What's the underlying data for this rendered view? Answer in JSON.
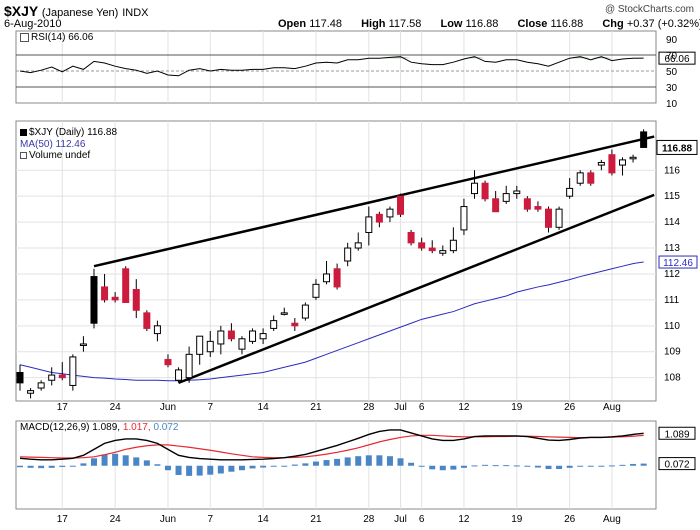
{
  "header": {
    "symbol": "$XJY",
    "name": "(Japanese Yen)",
    "exchange": "INDX",
    "date": "6-Aug-2010",
    "brand": "@ StockCharts.com",
    "open_label": "Open",
    "open": "117.48",
    "high_label": "High",
    "high": "117.58",
    "low_label": "Low",
    "low": "116.88",
    "close_label": "Close",
    "close": "116.88",
    "chg_label": "Chg",
    "chg": "+0.37 (+0.32%)"
  },
  "colors": {
    "up": "#ffffff",
    "down": "#cc1b3d",
    "outline": "#000000",
    "ma": "#2b2bbf",
    "macd_line": "#000000",
    "signal_line": "#e8292e",
    "hist": "#4a86c6",
    "grid": "#e2e2e2",
    "rsi_fill": "#3c8a3c"
  },
  "panes": {
    "rsi_label": "RSI(14) 66.06",
    "price_label": "$XJY (Daily) 116.88",
    "ma_label": "MA(50) 112.46",
    "vol_label": "Volume undef",
    "macd_label_a": "MACD(12,26,9)",
    "macd_label_b": "1.089,",
    "macd_label_c": "1.017,",
    "macd_label_d": "0.072"
  },
  "x_labels": [
    "17",
    "24",
    "Jun",
    "7",
    "14",
    "21",
    "28",
    "Jul",
    "6",
    "12",
    "19",
    "26",
    "Aug"
  ],
  "chart_data": [
    {
      "type": "candlestick",
      "title": "$XJY (Daily) 116.88",
      "ylim": [
        107.1,
        117.9
      ],
      "yticks": [
        108,
        109,
        110,
        111,
        112,
        113,
        114,
        115,
        116
      ],
      "last_value": 116.88,
      "ohlc": [
        [
          108.2,
          108.5,
          107.5,
          107.8
        ],
        [
          107.4,
          107.6,
          107.2,
          107.5
        ],
        [
          107.6,
          107.9,
          107.5,
          107.8
        ],
        [
          107.9,
          108.4,
          107.7,
          108.1
        ],
        [
          108.1,
          108.6,
          107.9,
          108.0
        ],
        [
          107.7,
          108.9,
          107.5,
          108.8
        ],
        [
          109.3,
          109.6,
          109.0,
          109.3
        ],
        [
          110.1,
          112.2,
          109.9,
          111.9
        ],
        [
          111.5,
          112.0,
          110.9,
          111.0
        ],
        [
          111.1,
          111.3,
          110.9,
          111.0
        ],
        [
          112.2,
          112.3,
          110.9,
          110.9
        ],
        [
          111.4,
          111.8,
          110.3,
          110.6
        ],
        [
          110.5,
          110.6,
          109.8,
          109.9
        ],
        [
          109.7,
          110.2,
          109.4,
          110.0
        ],
        [
          108.7,
          108.9,
          108.4,
          108.5
        ],
        [
          107.9,
          108.4,
          107.8,
          108.3
        ],
        [
          108.0,
          109.2,
          107.8,
          108.9
        ],
        [
          108.9,
          109.6,
          108.5,
          109.6
        ],
        [
          109.0,
          109.8,
          108.8,
          109.4
        ],
        [
          109.3,
          110.0,
          108.9,
          109.8
        ],
        [
          109.8,
          110.1,
          109.4,
          109.5
        ],
        [
          109.1,
          109.6,
          108.9,
          109.5
        ],
        [
          109.4,
          109.9,
          109.3,
          109.8
        ],
        [
          109.5,
          109.9,
          109.3,
          109.7
        ],
        [
          109.9,
          110.4,
          109.8,
          110.2
        ],
        [
          110.5,
          110.7,
          110.4,
          110.5
        ],
        [
          110.1,
          110.3,
          109.8,
          110.0
        ],
        [
          110.3,
          110.9,
          110.2,
          110.8
        ],
        [
          111.1,
          111.8,
          111.0,
          111.6
        ],
        [
          111.7,
          112.5,
          111.6,
          112.0
        ],
        [
          112.2,
          112.4,
          111.4,
          111.5
        ],
        [
          112.5,
          113.2,
          112.3,
          113.0
        ],
        [
          113.0,
          113.6,
          112.9,
          113.2
        ],
        [
          113.6,
          114.6,
          113.1,
          114.2
        ],
        [
          114.3,
          114.4,
          113.8,
          114.0
        ],
        [
          114.2,
          114.6,
          114.0,
          114.5
        ],
        [
          115.0,
          115.1,
          114.2,
          114.3
        ],
        [
          113.6,
          113.7,
          113.1,
          113.2
        ],
        [
          113.2,
          113.4,
          112.9,
          113.0
        ],
        [
          113.0,
          113.3,
          112.8,
          112.9
        ],
        [
          112.8,
          113.1,
          112.7,
          112.9
        ],
        [
          112.9,
          113.8,
          112.8,
          113.3
        ],
        [
          113.7,
          114.9,
          113.5,
          114.6
        ],
        [
          115.1,
          116.0,
          114.9,
          115.5
        ],
        [
          115.5,
          115.6,
          114.8,
          114.9
        ],
        [
          114.9,
          115.2,
          114.4,
          114.4
        ],
        [
          114.8,
          115.4,
          114.7,
          115.1
        ],
        [
          115.1,
          115.4,
          114.9,
          115.2
        ],
        [
          114.9,
          115.0,
          114.4,
          114.5
        ],
        [
          114.6,
          114.8,
          114.4,
          114.5
        ],
        [
          114.5,
          114.6,
          113.6,
          113.8
        ],
        [
          113.8,
          114.6,
          113.7,
          114.5
        ],
        [
          115.0,
          115.7,
          114.9,
          115.3
        ],
        [
          115.5,
          116.0,
          115.4,
          115.9
        ],
        [
          115.9,
          116.0,
          115.4,
          115.5
        ],
        [
          116.2,
          116.4,
          116.0,
          116.3
        ],
        [
          116.6,
          116.8,
          115.8,
          115.9
        ],
        [
          116.2,
          116.5,
          115.8,
          116.4
        ],
        [
          116.5,
          116.6,
          116.3,
          116.5
        ],
        [
          117.48,
          117.58,
          116.88,
          116.88
        ]
      ],
      "ma50": [
        108.5,
        108.4,
        108.3,
        108.2,
        108.15,
        108.1,
        108.05,
        108.0,
        107.98,
        107.95,
        107.93,
        107.9,
        107.9,
        107.9,
        107.88,
        107.88,
        107.9,
        107.92,
        107.95,
        108.0,
        108.05,
        108.1,
        108.15,
        108.2,
        108.3,
        108.4,
        108.5,
        108.6,
        108.75,
        108.9,
        109.05,
        109.2,
        109.35,
        109.5,
        109.65,
        109.8,
        109.95,
        110.1,
        110.25,
        110.35,
        110.45,
        110.55,
        110.7,
        110.85,
        110.95,
        111.05,
        111.15,
        111.3,
        111.4,
        111.5,
        111.58,
        111.68,
        111.78,
        111.9,
        112.0,
        112.1,
        112.2,
        112.3,
        112.4,
        112.46
      ]
    },
    {
      "type": "line",
      "title": "RSI(14) 66.06",
      "ylim": [
        10,
        100
      ],
      "yticks": [
        10,
        30,
        50,
        66.06,
        70,
        90
      ],
      "reference_lines": [
        30,
        50,
        70
      ],
      "values": [
        50,
        48,
        51,
        55,
        49,
        56,
        52,
        62,
        60,
        56,
        53,
        51,
        47,
        50,
        45,
        44,
        51,
        53,
        50,
        52,
        51,
        51,
        52,
        52,
        54,
        54,
        53,
        56,
        60,
        61,
        60,
        64,
        64,
        66,
        66,
        67,
        68,
        61,
        59,
        58,
        58,
        61,
        65,
        68,
        62,
        61,
        64,
        64,
        61,
        59,
        56,
        61,
        66,
        68,
        64,
        68,
        63,
        65,
        66,
        66.06
      ]
    },
    {
      "type": "line",
      "title": "MACD(12,26,9) 1.089, 1.017, 0.072",
      "ylim": [
        -1.45,
        1.5
      ],
      "yticks": [
        0.072,
        1.089
      ],
      "series": [
        {
          "name": "MACD",
          "values": [
            0.25,
            0.22,
            0.2,
            0.2,
            0.22,
            0.25,
            0.35,
            0.55,
            0.75,
            0.85,
            0.9,
            0.9,
            0.85,
            0.75,
            0.55,
            0.35,
            0.28,
            0.24,
            0.22,
            0.2,
            0.2,
            0.2,
            0.21,
            0.22,
            0.24,
            0.27,
            0.32,
            0.38,
            0.48,
            0.58,
            0.68,
            0.8,
            0.92,
            1.05,
            1.15,
            1.2,
            1.2,
            1.1,
            1.0,
            0.9,
            0.85,
            0.85,
            0.9,
            0.98,
            1.0,
            1.0,
            1.0,
            1.0,
            0.98,
            0.92,
            0.86,
            0.85,
            0.88,
            0.93,
            0.95,
            0.95,
            0.97,
            1.0,
            1.05,
            1.089
          ]
        },
        {
          "name": "Signal",
          "values": [
            0.3,
            0.29,
            0.28,
            0.27,
            0.26,
            0.26,
            0.27,
            0.3,
            0.37,
            0.45,
            0.55,
            0.62,
            0.67,
            0.7,
            0.7,
            0.66,
            0.62,
            0.57,
            0.52,
            0.46,
            0.4,
            0.35,
            0.3,
            0.28,
            0.27,
            0.27,
            0.28,
            0.3,
            0.34,
            0.39,
            0.45,
            0.52,
            0.6,
            0.7,
            0.8,
            0.88,
            0.95,
            1.0,
            1.02,
            1.02,
            1.0,
            0.98,
            0.97,
            0.97,
            0.97,
            0.98,
            0.98,
            0.99,
            0.99,
            0.98,
            0.97,
            0.96,
            0.95,
            0.94,
            0.95,
            0.95,
            0.96,
            0.97,
            0.99,
            1.017
          ]
        },
        {
          "name": "Histogram",
          "values": [
            -0.05,
            -0.07,
            -0.08,
            -0.07,
            -0.04,
            -0.01,
            0.08,
            0.25,
            0.38,
            0.4,
            0.35,
            0.28,
            0.18,
            0.05,
            -0.15,
            -0.31,
            -0.34,
            -0.33,
            -0.3,
            -0.26,
            -0.2,
            -0.15,
            -0.09,
            -0.06,
            -0.03,
            0.0,
            0.04,
            0.08,
            0.14,
            0.19,
            0.23,
            0.28,
            0.32,
            0.35,
            0.35,
            0.32,
            0.25,
            0.1,
            -0.02,
            -0.12,
            -0.15,
            -0.13,
            -0.07,
            0.01,
            0.03,
            0.02,
            0.02,
            0.01,
            -0.01,
            -0.06,
            -0.11,
            -0.11,
            -0.07,
            -0.01,
            0.0,
            0.0,
            0.01,
            0.03,
            0.06,
            0.072
          ]
        }
      ]
    }
  ],
  "trendlines": [
    {
      "from": [
        7,
        112.3
      ],
      "to": [
        60,
        117.3
      ]
    },
    {
      "from": [
        15,
        107.8
      ],
      "to": [
        60,
        115.05
      ]
    }
  ]
}
